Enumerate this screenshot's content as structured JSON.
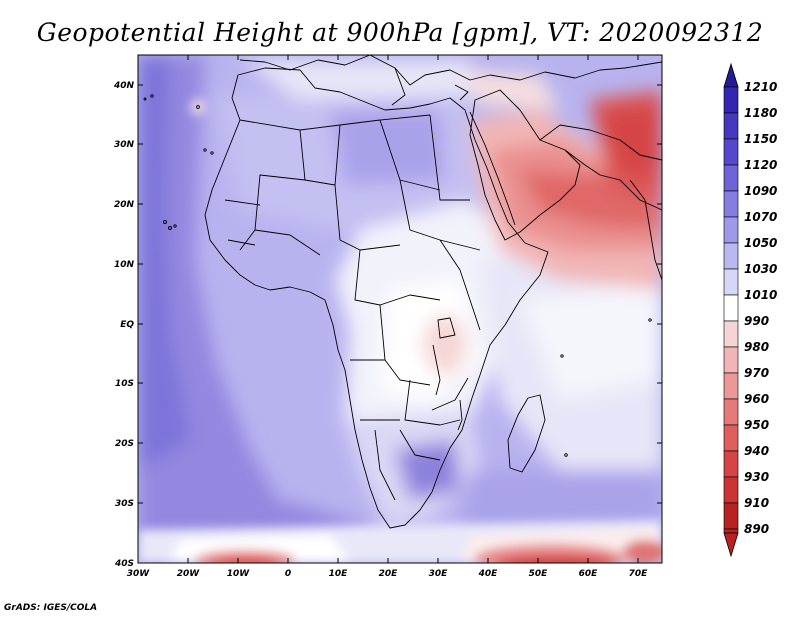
{
  "title": "Geopotential Height at 900hPa [gpm], VT: 2020092312",
  "credit": "GrADS: IGES/COLA",
  "lat_labels": [
    "40N",
    "30N",
    "20N",
    "10N",
    "EQ",
    "10S",
    "20S",
    "30S",
    "40S"
  ],
  "lon_labels": [
    "30W",
    "20W",
    "10W",
    "0",
    "10E",
    "20E",
    "30E",
    "40E",
    "50E",
    "60E",
    "70E"
  ],
  "colorbar": {
    "levels": [
      "1210",
      "1180",
      "1150",
      "1120",
      "1090",
      "1070",
      "1050",
      "1030",
      "1010",
      "990",
      "980",
      "970",
      "960",
      "950",
      "940",
      "930",
      "910",
      "890"
    ],
    "colors": [
      "#261a99",
      "#3326b0",
      "#4438bf",
      "#5548cc",
      "#6d63d6",
      "#857de0",
      "#9e99e8",
      "#bab8f0",
      "#d6d6f7",
      "#ffffff",
      "#f7d4d4",
      "#f2b5b5",
      "#ed9898",
      "#e67a7a",
      "#df5f5f",
      "#d64545",
      "#cc3333",
      "#b82222"
    ]
  },
  "chart_data": {
    "type": "heatmap",
    "title": "Geopotential Height at 900hPa [gpm], VT: 2020092312",
    "variable": "Geopotential Height",
    "level": "900hPa",
    "units": "gpm",
    "valid_time": "2020092312",
    "lon_range": [
      -30,
      75
    ],
    "lat_range": [
      -40,
      45
    ],
    "contour_levels": [
      890,
      910,
      930,
      940,
      950,
      960,
      970,
      980,
      990,
      1010,
      1030,
      1050,
      1070,
      1090,
      1120,
      1150,
      1180,
      1210
    ]
  }
}
